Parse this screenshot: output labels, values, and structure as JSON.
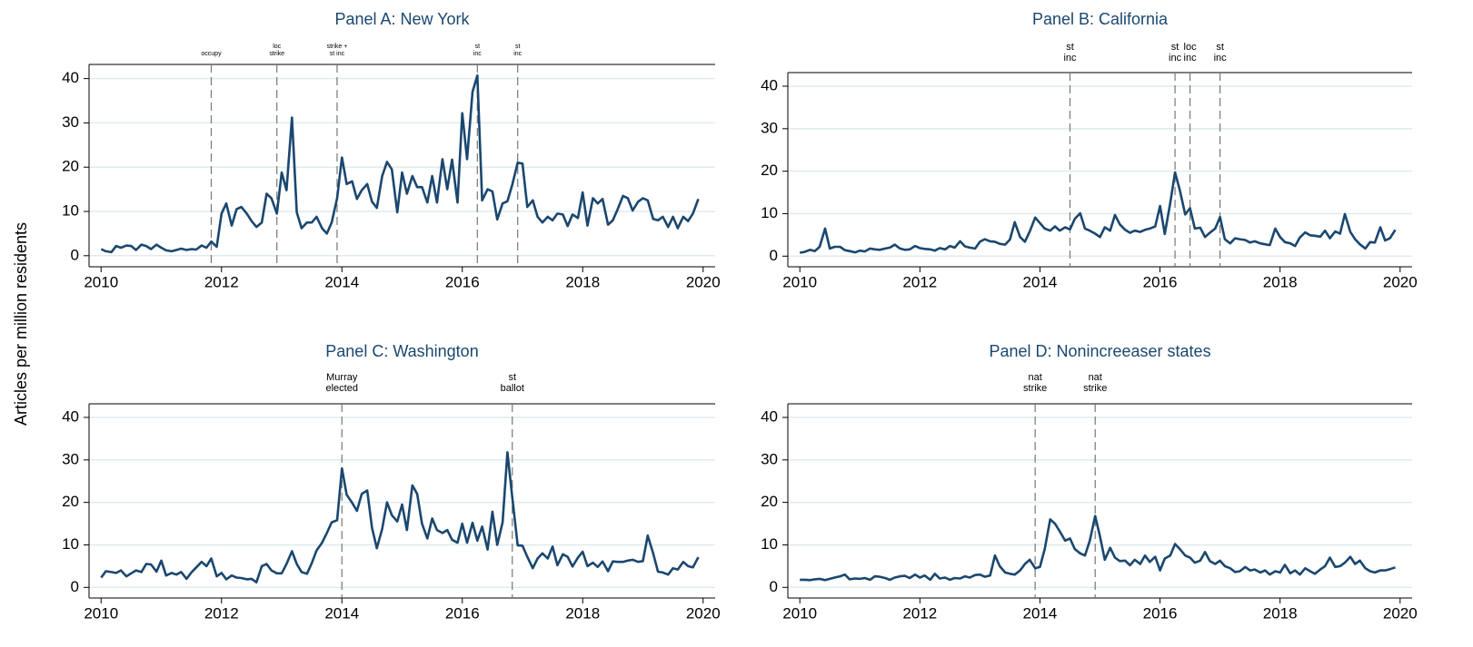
{
  "y_label": "Articles per million residents",
  "chart_data": [
    {
      "type": "line",
      "title": "Panel A: New York",
      "color": "#1a476f",
      "x": [
        2010,
        2010.08,
        2010.17,
        2010.25,
        2010.33,
        2010.42,
        2010.5,
        2010.58,
        2010.67,
        2010.75,
        2010.83,
        2010.92,
        2011,
        2011.08,
        2011.17,
        2011.25,
        2011.33,
        2011.42,
        2011.5,
        2011.58,
        2011.67,
        2011.75,
        2011.83,
        2011.92,
        2012,
        2012.08,
        2012.17,
        2012.25,
        2012.33,
        2012.42,
        2012.5,
        2012.58,
        2012.67,
        2012.75,
        2012.83,
        2012.92,
        2013,
        2013.08,
        2013.17,
        2013.25,
        2013.33,
        2013.42,
        2013.5,
        2013.58,
        2013.67,
        2013.75,
        2013.83,
        2013.92,
        2014,
        2014.08,
        2014.17,
        2014.25,
        2014.33,
        2014.42,
        2014.5,
        2014.58,
        2014.67,
        2014.75,
        2014.83,
        2014.92,
        2015,
        2015.08,
        2015.17,
        2015.25,
        2015.33,
        2015.42,
        2015.5,
        2015.58,
        2015.67,
        2015.75,
        2015.83,
        2015.92,
        2016,
        2016.08,
        2016.17,
        2016.25,
        2016.33,
        2016.42,
        2016.5,
        2016.58,
        2016.67,
        2016.75,
        2016.83,
        2016.92,
        2017,
        2017.08,
        2017.17,
        2017.25,
        2017.33,
        2017.42,
        2017.5,
        2017.58,
        2017.67,
        2017.75,
        2017.83,
        2017.92,
        2018,
        2018.08,
        2018.17,
        2018.25,
        2018.33,
        2018.42,
        2018.5,
        2018.58,
        2018.67,
        2018.75,
        2018.83,
        2018.92,
        2019,
        2019.08,
        2019.17,
        2019.25,
        2019.33,
        2019.42,
        2019.5,
        2019.58,
        2019.67,
        2019.75,
        2019.83,
        2019.92
      ],
      "values": [
        1.5,
        1,
        0.8,
        2.2,
        1.8,
        2.3,
        2.2,
        1.3,
        2.5,
        2.2,
        1.5,
        2.5,
        1.8,
        1.2,
        1,
        1.3,
        1.6,
        1.3,
        1.5,
        1.4,
        2.3,
        1.8,
        3.2,
        2,
        9.5,
        11.8,
        6.8,
        10.5,
        11,
        9.5,
        7.8,
        6.5,
        7.5,
        14,
        13,
        9.5,
        18.8,
        14.8,
        31.2,
        9.8,
        6.2,
        7.5,
        7.5,
        8.8,
        6.2,
        5,
        7.5,
        13,
        22.2,
        16.2,
        16.8,
        12.8,
        14.8,
        16.2,
        12.2,
        10.8,
        18,
        21.2,
        19.5,
        9.8,
        18.8,
        14,
        18,
        15.5,
        15.5,
        12,
        18,
        12,
        21.8,
        15,
        21.7,
        12,
        32.2,
        21.8,
        37,
        40.7,
        12.5,
        15,
        14.5,
        8.2,
        11.8,
        12.3,
        16,
        21,
        20.8,
        11,
        12.5,
        8.8,
        7.5,
        8.8,
        8,
        9.5,
        9.3,
        6.7,
        9.3,
        8.5,
        14.3,
        6.8,
        13,
        11.8,
        12.8,
        7,
        8,
        10.5,
        13.5,
        13,
        10.2,
        12.2,
        13,
        12.5,
        8.3,
        8,
        8.8,
        6.5,
        8.8,
        6.2,
        8.8,
        7.8,
        9.5,
        12.8
      ],
      "xlim": [
        2009.8,
        2020.2
      ],
      "ylim": [
        -2.5,
        43.2
      ],
      "xticks": [
        2010,
        2012,
        2014,
        2016,
        2018,
        2020
      ],
      "yticks": [
        0,
        10,
        20,
        30,
        40
      ],
      "grid": true,
      "events": [
        {
          "x": 2011.83,
          "label": [
            "occupy"
          ]
        },
        {
          "x": 2012.92,
          "label": [
            "loc",
            "strike"
          ]
        },
        {
          "x": 2013.92,
          "label": [
            "strike +",
            "st inc"
          ]
        },
        {
          "x": 2016.25,
          "label": [
            "st",
            "inc"
          ]
        },
        {
          "x": 2016.92,
          "label": [
            "st",
            "inc"
          ]
        }
      ]
    },
    {
      "type": "line",
      "title": "Panel B: California",
      "color": "#1a476f",
      "x": [
        2010,
        2010.08,
        2010.17,
        2010.25,
        2010.33,
        2010.42,
        2010.5,
        2010.58,
        2010.67,
        2010.75,
        2010.83,
        2010.92,
        2011,
        2011.08,
        2011.17,
        2011.25,
        2011.33,
        2011.42,
        2011.5,
        2011.58,
        2011.67,
        2011.75,
        2011.83,
        2011.92,
        2012,
        2012.08,
        2012.17,
        2012.25,
        2012.33,
        2012.42,
        2012.5,
        2012.58,
        2012.67,
        2012.75,
        2012.83,
        2012.92,
        2013,
        2013.08,
        2013.17,
        2013.25,
        2013.33,
        2013.42,
        2013.5,
        2013.58,
        2013.67,
        2013.75,
        2013.83,
        2013.92,
        2014,
        2014.08,
        2014.17,
        2014.25,
        2014.33,
        2014.42,
        2014.5,
        2014.58,
        2014.67,
        2014.75,
        2014.83,
        2014.92,
        2015,
        2015.08,
        2015.17,
        2015.25,
        2015.33,
        2015.42,
        2015.5,
        2015.58,
        2015.67,
        2015.75,
        2015.83,
        2015.92,
        2016,
        2016.08,
        2016.17,
        2016.25,
        2016.33,
        2016.42,
        2016.5,
        2016.58,
        2016.67,
        2016.75,
        2016.83,
        2016.92,
        2017,
        2017.08,
        2017.17,
        2017.25,
        2017.33,
        2017.42,
        2017.5,
        2017.58,
        2017.67,
        2017.75,
        2017.83,
        2017.92,
        2018,
        2018.08,
        2018.17,
        2018.25,
        2018.33,
        2018.42,
        2018.5,
        2018.58,
        2018.67,
        2018.75,
        2018.83,
        2018.92,
        2019,
        2019.08,
        2019.17,
        2019.25,
        2019.33,
        2019.42,
        2019.5,
        2019.58,
        2019.67,
        2019.75,
        2019.83,
        2019.92
      ],
      "values": [
        0.8,
        1,
        1.5,
        1.2,
        2.2,
        6.5,
        1.8,
        2.2,
        2.2,
        1.4,
        1.2,
        0.9,
        1.3,
        1.1,
        1.8,
        1.6,
        1.5,
        1.8,
        2,
        2.7,
        1.8,
        1.5,
        1.6,
        2.4,
        1.9,
        1.7,
        1.6,
        1.3,
        1.9,
        1.6,
        2.4,
        2,
        3.5,
        2.3,
        2,
        1.8,
        3.4,
        4,
        3.5,
        3.4,
        2.9,
        2.7,
        3.9,
        8,
        4.5,
        3.4,
        5.8,
        9.1,
        7.8,
        6.5,
        6,
        7,
        6,
        6.8,
        6.3,
        8.8,
        10.1,
        6.5,
        6,
        5.3,
        4.5,
        6.8,
        6,
        9.7,
        7.5,
        6.2,
        5.5,
        6,
        5.7,
        6.2,
        6.5,
        7,
        11.8,
        5.2,
        12.5,
        19.7,
        15.5,
        9.8,
        11.3,
        6.5,
        6.7,
        4.5,
        5.5,
        6.5,
        9.2,
        4,
        3,
        4.2,
        4,
        3.8,
        3.2,
        3.5,
        3,
        2.8,
        2.6,
        6.5,
        4.5,
        3.3,
        3,
        2.4,
        4.4,
        5.6,
        4.9,
        4.8,
        4.6,
        6,
        4.2,
        5.8,
        5.3,
        9.9,
        5.7,
        4,
        2.8,
        1.8,
        3.3,
        3.2,
        6.8,
        3.7,
        4.2,
        6.2
      ],
      "xlim": [
        2009.8,
        2020.2
      ],
      "ylim": [
        -2.5,
        43.2
      ],
      "xticks": [
        2010,
        2012,
        2014,
        2016,
        2018,
        2020
      ],
      "yticks": [
        0,
        10,
        20,
        30,
        40
      ],
      "grid": true,
      "events": [
        {
          "x": 2014.5,
          "label": [
            "st",
            "inc"
          ]
        },
        {
          "x": 2016.25,
          "label": [
            "st",
            "inc"
          ]
        },
        {
          "x": 2016.5,
          "label": [
            "loc",
            "inc"
          ]
        },
        {
          "x": 2017,
          "label": [
            "st",
            "inc"
          ]
        }
      ]
    },
    {
      "type": "line",
      "title": "Panel C: Washington",
      "color": "#1a476f",
      "x": [
        2010,
        2010.08,
        2010.17,
        2010.25,
        2010.33,
        2010.42,
        2010.5,
        2010.58,
        2010.67,
        2010.75,
        2010.83,
        2010.92,
        2011,
        2011.08,
        2011.17,
        2011.25,
        2011.33,
        2011.42,
        2011.5,
        2011.58,
        2011.67,
        2011.75,
        2011.83,
        2011.92,
        2012,
        2012.08,
        2012.17,
        2012.25,
        2012.33,
        2012.42,
        2012.5,
        2012.58,
        2012.67,
        2012.75,
        2012.83,
        2012.92,
        2013,
        2013.08,
        2013.17,
        2013.25,
        2013.33,
        2013.42,
        2013.5,
        2013.58,
        2013.67,
        2013.75,
        2013.83,
        2013.92,
        2014,
        2014.08,
        2014.17,
        2014.25,
        2014.33,
        2014.42,
        2014.5,
        2014.58,
        2014.67,
        2014.75,
        2014.83,
        2014.92,
        2015,
        2015.08,
        2015.17,
        2015.25,
        2015.33,
        2015.42,
        2015.5,
        2015.58,
        2015.67,
        2015.75,
        2015.83,
        2015.92,
        2016,
        2016.08,
        2016.17,
        2016.25,
        2016.33,
        2016.42,
        2016.5,
        2016.58,
        2016.67,
        2016.75,
        2016.83,
        2016.92,
        2017,
        2017.08,
        2017.17,
        2017.25,
        2017.33,
        2017.42,
        2017.5,
        2017.58,
        2017.67,
        2017.75,
        2017.83,
        2017.92,
        2018,
        2018.08,
        2018.17,
        2018.25,
        2018.33,
        2018.42,
        2018.5,
        2018.58,
        2018.67,
        2018.75,
        2018.83,
        2018.92,
        2019,
        2019.08,
        2019.17,
        2019.25,
        2019.33,
        2019.42,
        2019.5,
        2019.58,
        2019.67,
        2019.75,
        2019.83,
        2019.92
      ],
      "values": [
        2.3,
        3.8,
        3.6,
        3.4,
        4,
        2.6,
        3.3,
        4,
        3.6,
        5.5,
        5.4,
        3.7,
        6.3,
        2.8,
        3.4,
        3,
        3.6,
        2,
        3.5,
        4.7,
        6,
        5,
        6.8,
        2.6,
        3.4,
        1.9,
        2.8,
        2.3,
        2.2,
        1.9,
        2,
        1.2,
        5,
        5.5,
        4,
        3.3,
        3.3,
        5.5,
        8.5,
        5.5,
        3.6,
        3.2,
        5.7,
        8.7,
        10.5,
        12.8,
        15.3,
        15.8,
        28,
        21.8,
        19.9,
        18,
        22,
        22.8,
        14,
        9.2,
        13.8,
        20,
        17,
        15.5,
        19.5,
        13.5,
        24,
        22,
        15,
        11.5,
        16.2,
        13.5,
        12.8,
        13.5,
        11.2,
        10.5,
        15,
        10.5,
        15.2,
        11,
        14.3,
        8.9,
        17.8,
        10,
        15.3,
        31.8,
        21.3,
        9.9,
        9.8,
        7.2,
        4.5,
        6.8,
        8,
        6.8,
        9.6,
        5.2,
        7.8,
        7.2,
        4.9,
        7,
        8.4,
        5,
        5.8,
        4.8,
        6.1,
        3.8,
        6.1,
        6,
        6,
        6.3,
        6.5,
        6,
        6.2,
        12.2,
        8,
        3.7,
        3.5,
        3,
        4.5,
        4.2,
        6,
        5,
        4.7,
        7.1
      ],
      "xlim": [
        2009.8,
        2020.2
      ],
      "ylim": [
        -2.5,
        43.2
      ],
      "xticks": [
        2010,
        2012,
        2014,
        2016,
        2018,
        2020
      ],
      "yticks": [
        0,
        10,
        20,
        30,
        40
      ],
      "grid": true,
      "events": [
        {
          "x": 2014,
          "label": [
            "Murray",
            "elected"
          ]
        },
        {
          "x": 2016.83,
          "label": [
            "st",
            "ballot"
          ]
        }
      ]
    },
    {
      "type": "line",
      "title": "Panel D: Nonincreeaser states",
      "color": "#1a476f",
      "x": [
        2010,
        2010.08,
        2010.17,
        2010.25,
        2010.33,
        2010.42,
        2010.5,
        2010.58,
        2010.67,
        2010.75,
        2010.83,
        2010.92,
        2011,
        2011.08,
        2011.17,
        2011.25,
        2011.33,
        2011.42,
        2011.5,
        2011.58,
        2011.67,
        2011.75,
        2011.83,
        2011.92,
        2012,
        2012.08,
        2012.17,
        2012.25,
        2012.33,
        2012.42,
        2012.5,
        2012.58,
        2012.67,
        2012.75,
        2012.83,
        2012.92,
        2013,
        2013.08,
        2013.17,
        2013.25,
        2013.33,
        2013.42,
        2013.5,
        2013.58,
        2013.67,
        2013.75,
        2013.83,
        2013.92,
        2014,
        2014.08,
        2014.17,
        2014.25,
        2014.33,
        2014.42,
        2014.5,
        2014.58,
        2014.67,
        2014.75,
        2014.83,
        2014.92,
        2015,
        2015.08,
        2015.17,
        2015.25,
        2015.33,
        2015.42,
        2015.5,
        2015.58,
        2015.67,
        2015.75,
        2015.83,
        2015.92,
        2016,
        2016.08,
        2016.17,
        2016.25,
        2016.33,
        2016.42,
        2016.5,
        2016.58,
        2016.67,
        2016.75,
        2016.83,
        2016.92,
        2017,
        2017.08,
        2017.17,
        2017.25,
        2017.33,
        2017.42,
        2017.5,
        2017.58,
        2017.67,
        2017.75,
        2017.83,
        2017.92,
        2018,
        2018.08,
        2018.17,
        2018.25,
        2018.33,
        2018.42,
        2018.5,
        2018.58,
        2018.67,
        2018.75,
        2018.83,
        2018.92,
        2019,
        2019.08,
        2019.17,
        2019.25,
        2019.33,
        2019.42,
        2019.5,
        2019.58,
        2019.67,
        2019.75,
        2019.83,
        2019.92
      ],
      "values": [
        1.8,
        1.8,
        1.7,
        1.9,
        2,
        1.7,
        2,
        2.3,
        2.6,
        3,
        1.9,
        2.1,
        2,
        2.2,
        1.8,
        2.6,
        2.5,
        2.2,
        1.8,
        2.3,
        2.6,
        2.7,
        2.2,
        3,
        2.3,
        2.8,
        1.8,
        3.2,
        2.1,
        2.3,
        1.8,
        2.2,
        2.1,
        2.6,
        2.3,
        2.9,
        3,
        2.5,
        2.8,
        7.5,
        5,
        3.5,
        3.2,
        3,
        4,
        5.5,
        6.5,
        4.5,
        4.8,
        9,
        16,
        15,
        13.2,
        11,
        11.5,
        9,
        8,
        7.5,
        11,
        16.8,
        12,
        6.5,
        9.3,
        7,
        6.2,
        6.3,
        5.2,
        6.5,
        5.5,
        7.5,
        6,
        7.2,
        4,
        6.8,
        7.5,
        10.2,
        9,
        7.5,
        7,
        5.8,
        6.3,
        8.3,
        6.2,
        5.5,
        6.3,
        5,
        4.5,
        3.6,
        3.8,
        4.8,
        4,
        4.2,
        3.5,
        4,
        3,
        3.8,
        3.5,
        5.3,
        3.3,
        4,
        3,
        4.5,
        3.8,
        3.2,
        4.2,
        5,
        7,
        4.8,
        5,
        5.8,
        7.2,
        5.5,
        6.3,
        4.5,
        3.8,
        3.5,
        4,
        4,
        4.3,
        4.7
      ],
      "xlim": [
        2009.8,
        2020.2
      ],
      "ylim": [
        -2.5,
        43.2
      ],
      "xticks": [
        2010,
        2012,
        2014,
        2016,
        2018,
        2020
      ],
      "yticks": [
        0,
        10,
        20,
        30,
        40
      ],
      "grid": true,
      "events": [
        {
          "x": 2013.92,
          "label": [
            "nat",
            "strike"
          ]
        },
        {
          "x": 2014.92,
          "label": [
            "nat",
            "strike"
          ]
        }
      ]
    }
  ]
}
